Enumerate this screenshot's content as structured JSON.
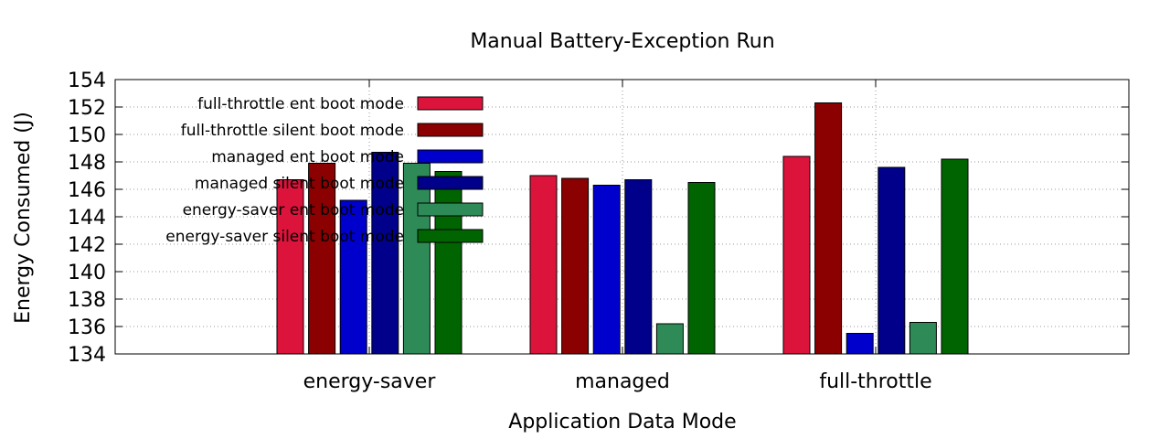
{
  "chart_data": {
    "type": "bar",
    "title": "Manual Battery-Exception Run",
    "xlabel": "Application Data Mode",
    "ylabel": "Energy Consumed (J)",
    "ylim": [
      134,
      154
    ],
    "yticks": [
      134,
      136,
      138,
      140,
      142,
      144,
      146,
      148,
      150,
      152,
      154
    ],
    "categories": [
      "energy-saver",
      "managed",
      "full-throttle"
    ],
    "grid": true,
    "legend_position": "top-left",
    "series": [
      {
        "name": "full-throttle ent boot mode",
        "color": "#dc143c",
        "values": [
          146.7,
          147.0,
          148.4
        ]
      },
      {
        "name": "full-throttle silent boot mode",
        "color": "#8b0000",
        "values": [
          147.9,
          146.8,
          152.3
        ]
      },
      {
        "name": "managed ent boot mode",
        "color": "#0000cd",
        "values": [
          145.2,
          146.3,
          135.5
        ]
      },
      {
        "name": "managed silent boot mode",
        "color": "#00008b",
        "values": [
          148.7,
          146.7,
          147.6
        ]
      },
      {
        "name": "energy-saver ent boot mode",
        "color": "#2e8b57",
        "values": [
          147.9,
          136.2,
          136.3
        ]
      },
      {
        "name": "energy-saver silent boot mode",
        "color": "#006400",
        "values": [
          147.3,
          146.5,
          148.2
        ]
      }
    ]
  }
}
